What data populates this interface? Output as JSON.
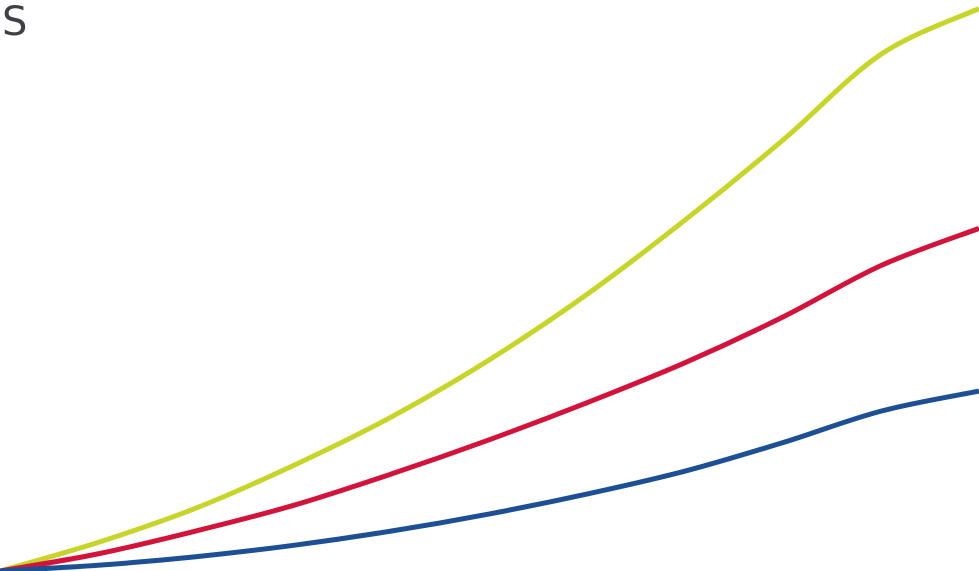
{
  "header": {
    "text": "S"
  },
  "chart_data": {
    "type": "line",
    "title": "",
    "xlabel": "",
    "ylabel": "",
    "grid": false,
    "xlim": [
      0,
      1
    ],
    "ylim": [
      0,
      1
    ],
    "series": [
      {
        "color": "#c7d52b",
        "x": [
          0.0,
          0.1,
          0.2,
          0.3,
          0.4,
          0.5,
          0.6,
          0.7,
          0.8,
          0.9,
          1.0
        ],
        "y": [
          0.0,
          0.05,
          0.11,
          0.185,
          0.27,
          0.37,
          0.485,
          0.615,
          0.755,
          0.905,
          0.985
        ]
      },
      {
        "color": "#d2143c",
        "x": [
          0.0,
          0.1,
          0.2,
          0.3,
          0.4,
          0.5,
          0.6,
          0.7,
          0.8,
          0.9,
          1.0
        ],
        "y": [
          0.0,
          0.03,
          0.07,
          0.115,
          0.17,
          0.23,
          0.295,
          0.365,
          0.445,
          0.535,
          0.6
        ]
      },
      {
        "color": "#1c4f93",
        "x": [
          0.0,
          0.1,
          0.2,
          0.3,
          0.4,
          0.5,
          0.6,
          0.7,
          0.8,
          0.9,
          1.0
        ],
        "y": [
          0.0,
          0.01,
          0.025,
          0.045,
          0.07,
          0.1,
          0.135,
          0.175,
          0.225,
          0.28,
          0.315
        ]
      }
    ]
  }
}
